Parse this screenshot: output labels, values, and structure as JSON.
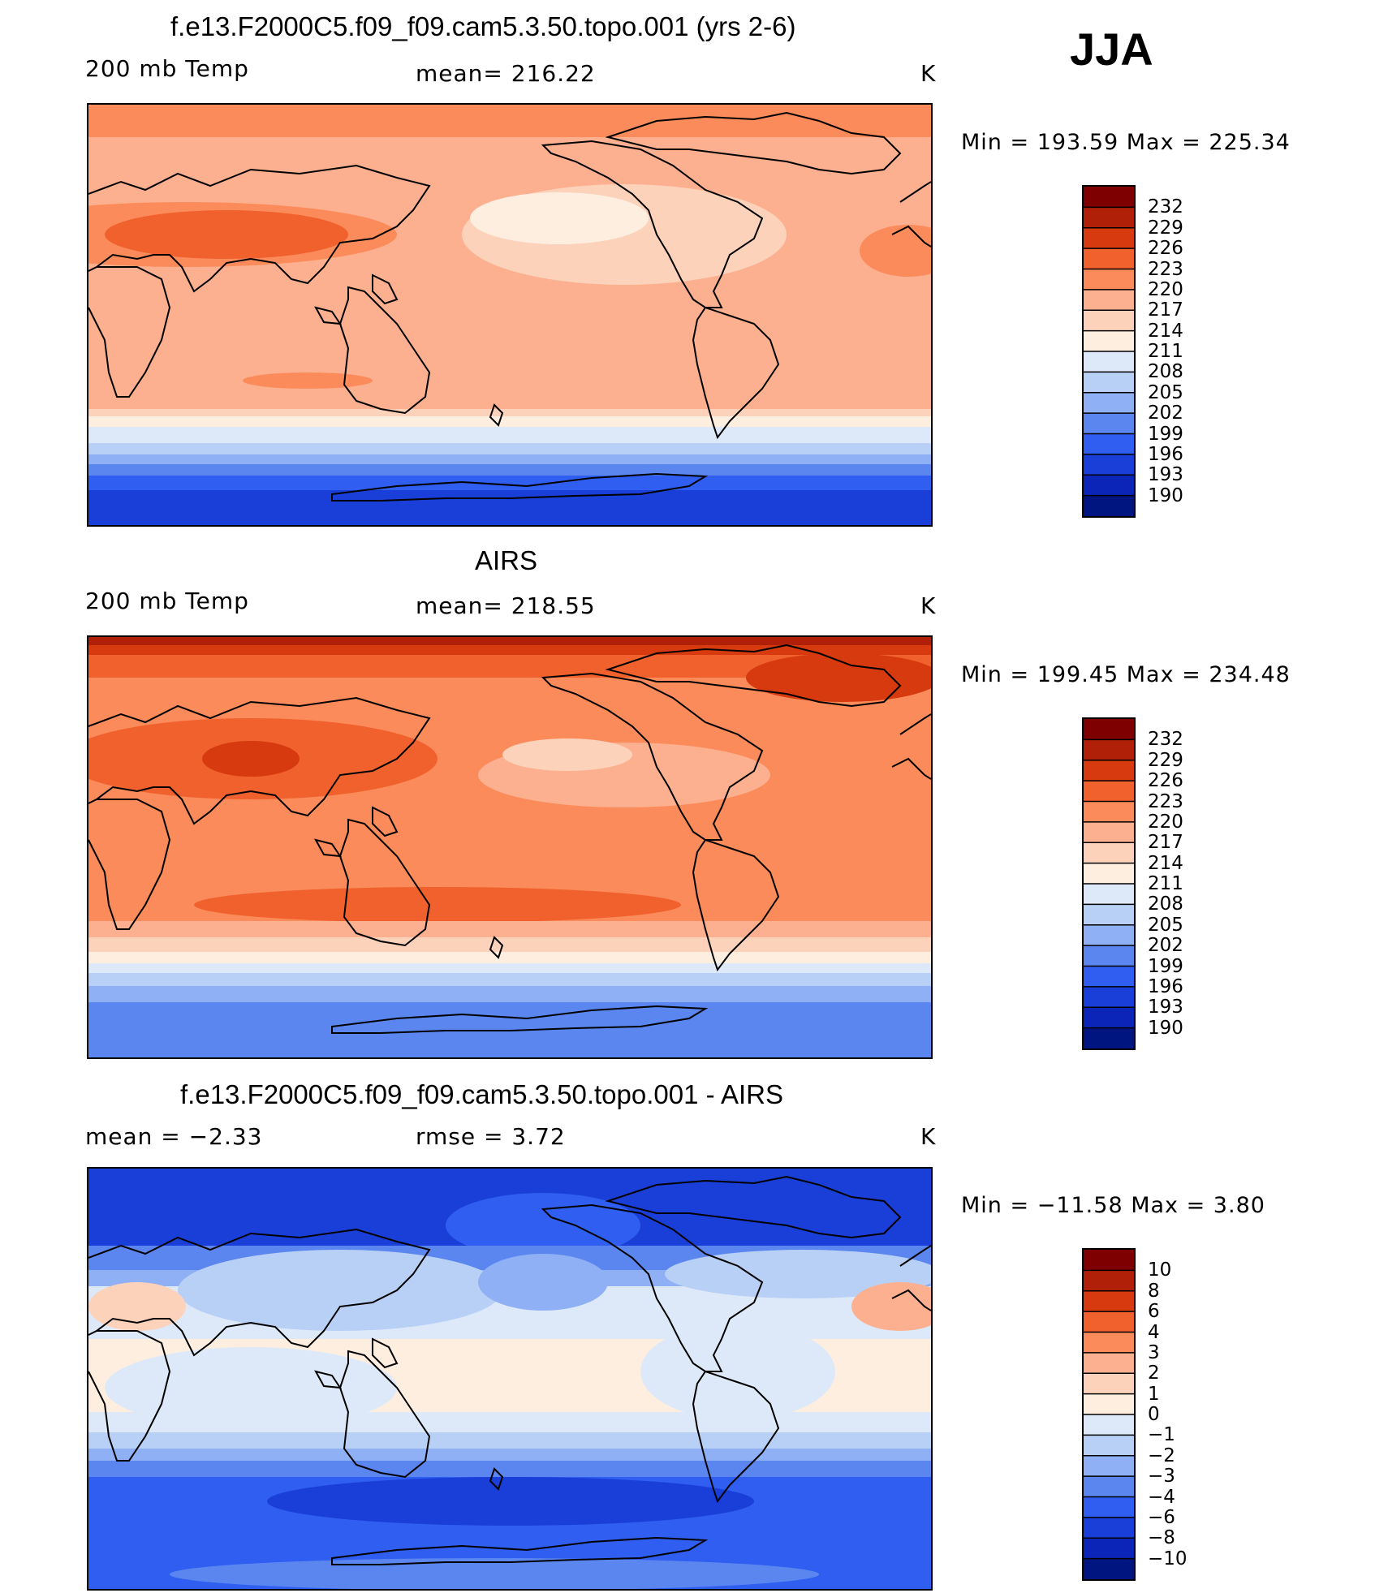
{
  "season": "JJA",
  "panels": [
    {
      "title": "f.e13.F2000C5.f09_f09.cam5.3.50.topo.001 (yrs 2-6)",
      "left_label": "200 mb Temp",
      "center_label": "mean= 216.22",
      "units": "K",
      "minmax": "Min = 193.59 Max = 225.34",
      "colorbar_ticks": [
        "232",
        "229",
        "226",
        "223",
        "220",
        "217",
        "214",
        "211",
        "208",
        "205",
        "202",
        "199",
        "196",
        "193",
        "190"
      ],
      "colorbar_colors": [
        "#7f0000",
        "#b02008",
        "#d63a0e",
        "#f0612e",
        "#fb8b5a",
        "#fcb08f",
        "#fdd2ba",
        "#fdeee0",
        "#dde9f8",
        "#b8d0f5",
        "#8fb0f4",
        "#5b86f0",
        "#2f5ef0",
        "#1a3fd8",
        "#0a25b8",
        "#001580"
      ]
    },
    {
      "title": "AIRS",
      "left_label": "200 mb Temp",
      "center_label": "mean= 218.55",
      "units": "K",
      "minmax": "Min = 199.45 Max = 234.48",
      "colorbar_ticks": [
        "232",
        "229",
        "226",
        "223",
        "220",
        "217",
        "214",
        "211",
        "208",
        "205",
        "202",
        "199",
        "196",
        "193",
        "190"
      ],
      "colorbar_colors": [
        "#7f0000",
        "#b02008",
        "#d63a0e",
        "#f0612e",
        "#fb8b5a",
        "#fcb08f",
        "#fdd2ba",
        "#fdeee0",
        "#dde9f8",
        "#b8d0f5",
        "#8fb0f4",
        "#5b86f0",
        "#2f5ef0",
        "#1a3fd8",
        "#0a25b8",
        "#001580"
      ]
    },
    {
      "title": "f.e13.F2000C5.f09_f09.cam5.3.50.topo.001 - AIRS",
      "left_label": "mean =   −2.33",
      "center_label": "rmse =    3.72",
      "units": "K",
      "minmax": "Min = −11.58 Max =    3.80",
      "colorbar_ticks": [
        "10",
        "8",
        "6",
        "4",
        "3",
        "2",
        "1",
        "0",
        "−1",
        "−2",
        "−3",
        "−4",
        "−6",
        "−8",
        "−10"
      ],
      "colorbar_colors": [
        "#7f0000",
        "#b02008",
        "#d63a0e",
        "#f0612e",
        "#fb8b5a",
        "#fcb08f",
        "#fdd2ba",
        "#fdeee0",
        "#dde9f8",
        "#b8d0f5",
        "#8fb0f4",
        "#5b86f0",
        "#2f5ef0",
        "#1a3fd8",
        "#0a25b8",
        "#001580"
      ]
    }
  ],
  "chart_data": [
    {
      "type": "heatmap",
      "title": "f.e13.F2000C5.f09_f09.cam5.3.50.topo.001 (yrs 2-6)",
      "variable": "200 mb Temp",
      "units": "K",
      "mean": 216.22,
      "min": 193.59,
      "max": 225.34,
      "contour_levels": [
        190,
        193,
        196,
        199,
        202,
        205,
        208,
        211,
        214,
        217,
        220,
        223,
        226,
        229,
        232
      ]
    },
    {
      "type": "heatmap",
      "title": "AIRS",
      "variable": "200 mb Temp",
      "units": "K",
      "mean": 218.55,
      "min": 199.45,
      "max": 234.48,
      "contour_levels": [
        190,
        193,
        196,
        199,
        202,
        205,
        208,
        211,
        214,
        217,
        220,
        223,
        226,
        229,
        232
      ]
    },
    {
      "type": "heatmap",
      "title": "f.e13.F2000C5.f09_f09.cam5.3.50.topo.001 - AIRS",
      "units": "K",
      "mean": -2.33,
      "rmse": 3.72,
      "min": -11.58,
      "max": 3.8,
      "contour_levels": [
        -10,
        -8,
        -6,
        -4,
        -3,
        -2,
        -1,
        0,
        1,
        2,
        3,
        4,
        6,
        8,
        10
      ]
    }
  ]
}
